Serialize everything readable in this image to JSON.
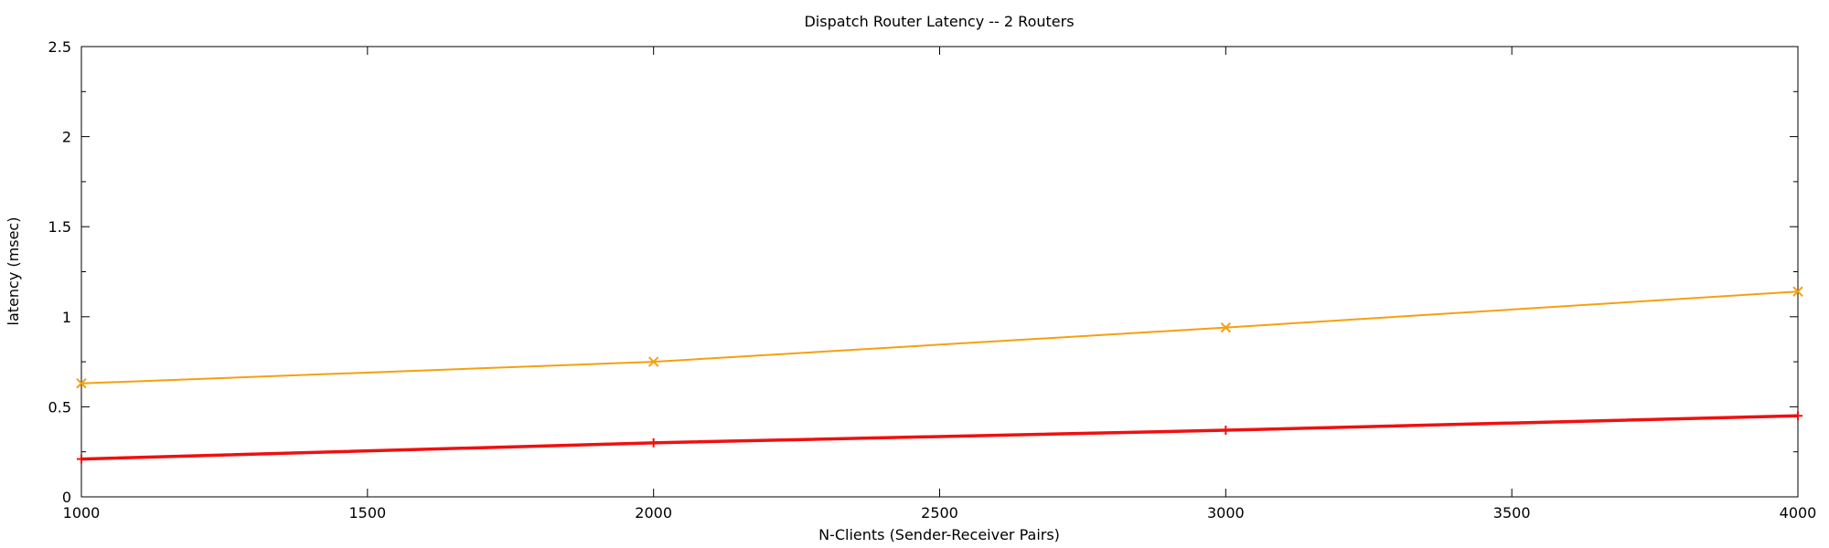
{
  "chart_data": {
    "type": "line",
    "title": "Dispatch Router Latency -- 2 Routers",
    "xlabel": "N-Clients  (Sender-Receiver Pairs)",
    "ylabel": "latency (msec)",
    "xlim": [
      1000,
      4000
    ],
    "ylim": [
      0,
      2.5
    ],
    "x_ticks": [
      "1000",
      "1500",
      "2000",
      "2500",
      "3000",
      "3500",
      "4000"
    ],
    "y_ticks": [
      "0",
      "0.5",
      "1",
      "1.5",
      "2",
      "2.5"
    ],
    "grid": false,
    "series": [
      {
        "color": "#f5a010",
        "marker": "x",
        "line_width": 2,
        "x": [
          1000,
          2000,
          3000,
          4000
        ],
        "y": [
          0.63,
          0.75,
          0.94,
          1.14
        ]
      },
      {
        "color": "#f01010",
        "marker": "+",
        "line_width": 3.5,
        "x": [
          1000,
          2000,
          3000,
          4000
        ],
        "y": [
          0.21,
          0.3,
          0.37,
          0.45
        ]
      }
    ]
  }
}
